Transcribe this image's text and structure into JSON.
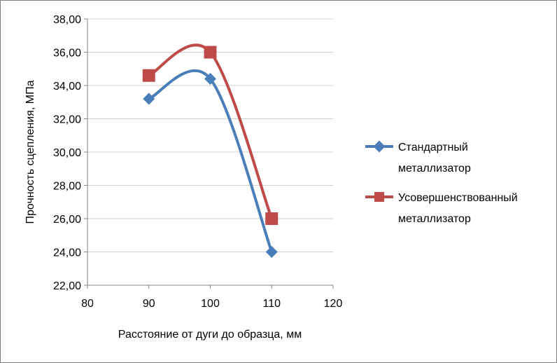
{
  "chart_data": {
    "type": "line",
    "xlabel": "Расстояние от дуги до образца, мм",
    "ylabel": "Прочность сцепления, МПа",
    "xlim": [
      80,
      120
    ],
    "ylim": [
      22,
      38
    ],
    "x_ticks": [
      "80",
      "90",
      "100",
      "110",
      "120"
    ],
    "y_ticks": [
      "22,00",
      "24,00",
      "26,00",
      "28,00",
      "30,00",
      "32,00",
      "34,00",
      "36,00",
      "38,00"
    ],
    "grid": "horizontal",
    "legend_position": "right",
    "x": [
      90,
      100,
      110
    ],
    "series": [
      {
        "name": "Стандартный металлизатор",
        "name_lines": [
          "Стандартный",
          "металлизатор"
        ],
        "values": [
          33.2,
          34.4,
          24.0
        ],
        "color": "#4a7ebb",
        "marker": "diamond"
      },
      {
        "name": "Усовершенствованный металлизатор",
        "name_lines": [
          "Усовершенствованный",
          "металлизатор"
        ],
        "values": [
          34.6,
          36.0,
          26.0
        ],
        "color": "#be4b48",
        "marker": "square"
      }
    ]
  }
}
